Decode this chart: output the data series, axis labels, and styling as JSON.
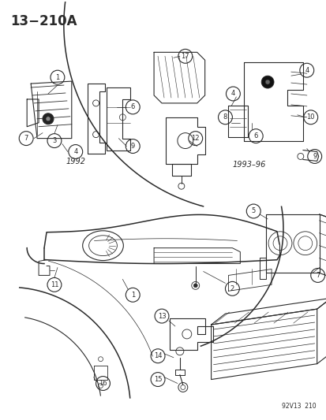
{
  "title": "13−210A",
  "subtitle": "92V13  210",
  "background_color": "#ffffff",
  "line_color": "#2a2a2a",
  "label_1992": "1992",
  "label_1993": "1993–96",
  "fig_width": 4.14,
  "fig_height": 5.33,
  "dpi": 100
}
